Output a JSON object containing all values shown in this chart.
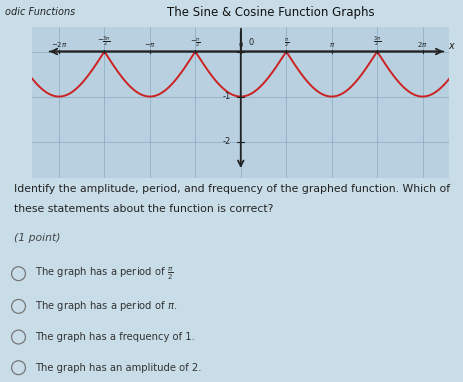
{
  "title": "The Sine & Cosine Function Graphs",
  "header_left": "odic Functions",
  "bg_color": "#c8dde8",
  "graph_bg": "#b8d0e0",
  "curve_color": "#cc2222",
  "xlim": [
    -7.2,
    7.2
  ],
  "ylim": [
    -2.8,
    0.55
  ],
  "x_ticks": [
    -6.283185,
    -4.712389,
    -3.141593,
    -1.570796,
    0,
    1.570796,
    3.141593,
    4.712389,
    6.283185
  ],
  "y_ticks": [
    -2,
    -1,
    0
  ],
  "question_text1": "Identify the amplitude, period, and frequency of the graphed function. Which of",
  "question_text2": "these statements about the function is correct?",
  "point_text": "(1 point)",
  "options": [
    "The graph has a period of π/2",
    "The graph has a period of π.",
    "The graph has a frequency of 1.",
    "The graph has an amplitude of 2."
  ],
  "option_text_color": "#333333",
  "question_text_color": "#222222",
  "grid_color": "#90b0c8",
  "axis_color": "#222222",
  "header_bg": "#b0c8d8",
  "title_color": "#111111"
}
